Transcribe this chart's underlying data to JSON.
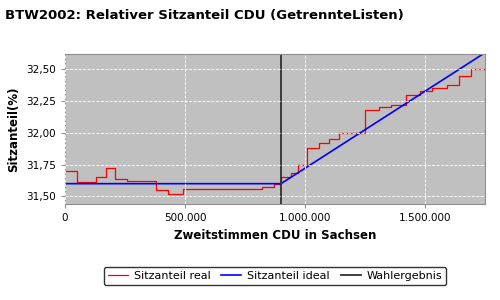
{
  "title": "BTW2002: Relativer Sitzanteil CDU (GetrennteListen)",
  "xlabel": "Zweitstimmen CDU in Sachsen",
  "ylabel": "Sitzanteil(%)",
  "plot_bg_color": "#c0c0c0",
  "fig_bg_color": "#ffffff",
  "xmin": 0,
  "xmax": 1750000,
  "ymin": 31.44,
  "ymax": 32.62,
  "wahlergebnis_x": 900000,
  "legend_labels": [
    "Sitzanteil real",
    "Sitzanteil ideal",
    "Wahlergebnis"
  ],
  "legend_colors": [
    "red",
    "blue",
    "#303030"
  ],
  "yticks": [
    31.5,
    31.75,
    32.0,
    32.25,
    32.5
  ],
  "xticks": [
    0,
    500000,
    1000000,
    1500000
  ],
  "xtick_labels": [
    "0",
    "500.000",
    "1.000.000",
    "1.500.000"
  ],
  "red_steps_x": [
    0,
    50000,
    50000,
    130000,
    130000,
    170000,
    170000,
    210000,
    210000,
    260000,
    260000,
    310000,
    310000,
    380000,
    380000,
    430000,
    430000,
    490000,
    490000,
    560000,
    560000,
    620000,
    620000,
    730000,
    730000,
    820000,
    820000,
    870000,
    870000,
    900000,
    900000,
    940000,
    940000,
    970000,
    970000,
    1010000,
    1010000,
    1060000,
    1060000,
    1100000,
    1100000,
    1140000,
    1140000,
    1190000,
    1190000,
    1250000,
    1250000,
    1310000,
    1310000,
    1360000,
    1360000,
    1420000,
    1420000,
    1480000,
    1480000,
    1530000,
    1530000,
    1590000,
    1590000,
    1640000,
    1640000,
    1690000,
    1690000,
    1750000
  ],
  "red_steps_y": [
    31.7,
    31.7,
    31.61,
    31.61,
    31.65,
    31.65,
    31.72,
    31.72,
    31.64,
    31.64,
    31.62,
    31.62,
    31.62,
    31.62,
    31.55,
    31.55,
    31.52,
    31.52,
    31.56,
    31.56,
    31.56,
    31.56,
    31.56,
    31.56,
    31.56,
    31.56,
    31.57,
    31.57,
    31.6,
    31.6,
    31.65,
    31.65,
    31.68,
    31.68,
    31.75,
    31.75,
    31.88,
    31.88,
    31.92,
    31.92,
    31.95,
    31.95,
    32.0,
    32.0,
    32.0,
    32.0,
    32.18,
    32.18,
    32.2,
    32.2,
    32.22,
    32.22,
    32.3,
    32.3,
    32.33,
    32.33,
    32.35,
    32.35,
    32.38,
    32.38,
    32.45,
    32.45,
    32.5,
    32.5
  ],
  "blue_x": [
    0,
    50000,
    900000,
    1750000
  ],
  "blue_y": [
    31.6,
    31.6,
    31.6,
    32.63
  ]
}
